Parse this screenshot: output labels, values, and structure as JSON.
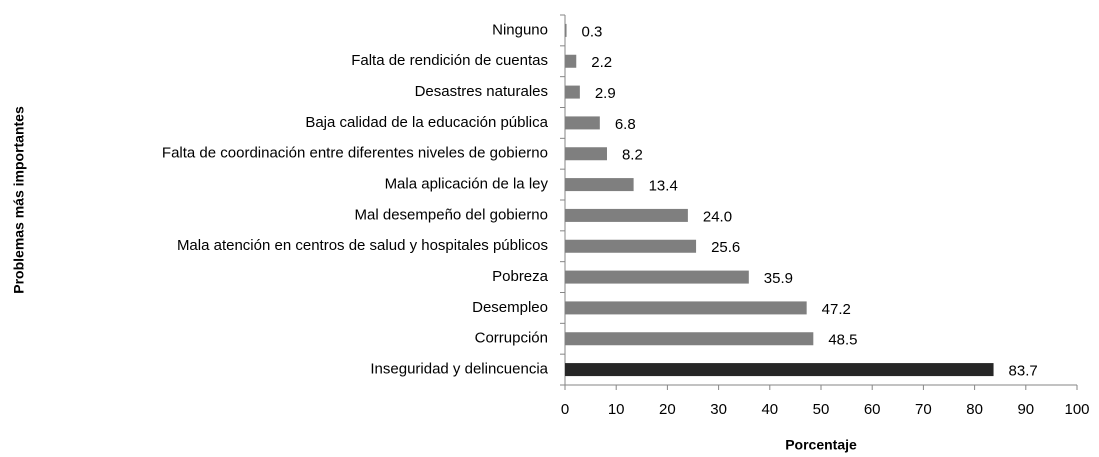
{
  "chart_data": {
    "type": "barh",
    "ylabel": "Problemas más importantes",
    "xlabel": "Porcentaje",
    "categories": [
      "Ninguno",
      "Falta de rendición de cuentas",
      "Desastres naturales",
      "Baja calidad de la educación pública",
      "Falta de coordinación entre diferentes niveles de gobierno",
      "Mala aplicación de la ley",
      "Mal desempeño del gobierno",
      "Mala atención en centros de salud y hospitales públicos",
      "Pobreza",
      "Desempleo",
      "Corrupción",
      "Inseguridad y delincuencia"
    ],
    "values": [
      0.3,
      2.2,
      2.9,
      6.8,
      8.2,
      13.4,
      24.0,
      25.6,
      35.9,
      47.2,
      48.5,
      83.7
    ],
    "value_labels": [
      "0.3",
      "2.2",
      "2.9",
      "6.8",
      "8.2",
      "13.4",
      "24.0",
      "25.6",
      "35.9",
      "47.2",
      "48.5",
      "83.7"
    ],
    "colors": [
      "#7f7f7f",
      "#7f7f7f",
      "#7f7f7f",
      "#7f7f7f",
      "#7f7f7f",
      "#7f7f7f",
      "#7f7f7f",
      "#7f7f7f",
      "#7f7f7f",
      "#7f7f7f",
      "#7f7f7f",
      "#262626"
    ],
    "xlim": [
      0,
      100
    ],
    "xticks": [
      0,
      10,
      20,
      30,
      40,
      50,
      60,
      70,
      80,
      90,
      100
    ]
  }
}
